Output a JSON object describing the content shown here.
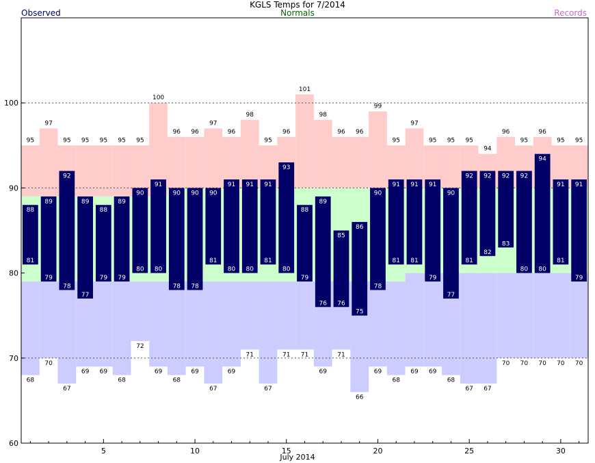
{
  "chart_data": {
    "type": "bar",
    "title": "KGLS Temps for  7/2014",
    "xlabel": "July 2014",
    "ylabel": "",
    "ylim": [
      60,
      110
    ],
    "xlim": [
      0.5,
      31.5
    ],
    "yticks": [
      60,
      70,
      80,
      90,
      100
    ],
    "xticks": [
      5,
      10,
      15,
      20,
      25,
      30
    ],
    "grid": "dotted horizontal at 70 and 90 and 100",
    "legend": {
      "observed": "Observed",
      "normals": "Normals",
      "records": "Records"
    },
    "colors": {
      "observed": "#000066",
      "normals": "#ccffcc",
      "records_high": "#ffcccc",
      "records_low": "#ccccff",
      "observed_text": "#000066",
      "normals_text": "#006600",
      "records_text": "#cc66cc"
    },
    "days": [
      1,
      2,
      3,
      4,
      5,
      6,
      7,
      8,
      9,
      10,
      11,
      12,
      13,
      14,
      15,
      16,
      17,
      18,
      19,
      20,
      21,
      22,
      23,
      24,
      25,
      26,
      27,
      28,
      29,
      30,
      31
    ],
    "observed_high": [
      88,
      89,
      92,
      89,
      88,
      89,
      90,
      91,
      90,
      90,
      90,
      91,
      91,
      91,
      93,
      88,
      89,
      85,
      86,
      90,
      91,
      91,
      91,
      90,
      92,
      92,
      92,
      92,
      94,
      91,
      91
    ],
    "observed_low": [
      81,
      79,
      78,
      77,
      79,
      79,
      80,
      80,
      78,
      78,
      81,
      80,
      80,
      81,
      80,
      79,
      76,
      76,
      75,
      78,
      81,
      81,
      79,
      77,
      81,
      82,
      83,
      80,
      80,
      81,
      79
    ],
    "normal_high": [
      89,
      89,
      89,
      89,
      89,
      89,
      89,
      89,
      90,
      90,
      90,
      90,
      90,
      90,
      90,
      90,
      90,
      90,
      90,
      90,
      90,
      90,
      90,
      90,
      90,
      90,
      90,
      90,
      90,
      90,
      90
    ],
    "normal_low": [
      79,
      79,
      79,
      79,
      79,
      79,
      79,
      79,
      79,
      79,
      79,
      79,
      79,
      79,
      79,
      79,
      79,
      79,
      79,
      79,
      79,
      80,
      80,
      80,
      80,
      80,
      80,
      80,
      80,
      80,
      80
    ],
    "record_high": [
      95,
      97,
      95,
      95,
      95,
      95,
      95,
      100,
      96,
      96,
      97,
      96,
      98,
      95,
      96,
      101,
      98,
      96,
      96,
      99,
      95,
      97,
      95,
      95,
      95,
      94,
      96,
      95,
      96,
      95,
      95
    ],
    "record_low": [
      68,
      70,
      67,
      69,
      69,
      68,
      72,
      69,
      68,
      69,
      67,
      69,
      71,
      67,
      71,
      71,
      69,
      71,
      66,
      69,
      68,
      69,
      69,
      68,
      67,
      67,
      70,
      70,
      70,
      70,
      70
    ]
  }
}
